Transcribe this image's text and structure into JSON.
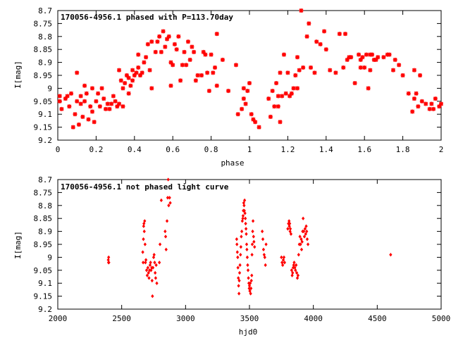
{
  "chart_data": [
    {
      "type": "scatter",
      "title": "170056-4956.1 phased with P=113.70day",
      "xlabel": "phase",
      "ylabel": "I[mag]",
      "xlim": [
        0,
        2
      ],
      "ylim": [
        8.7,
        9.2
      ],
      "y_inverted": true,
      "grid": false,
      "marker_color": "#ff0000",
      "x_ticks": [
        "0",
        "0.2",
        "0.4",
        "0.6",
        "0.8",
        "1",
        "1.2",
        "1.4",
        "1.6",
        "1.8",
        "2"
      ],
      "y_ticks": [
        "8.7",
        "8.75",
        "8.8",
        "8.85",
        "8.9",
        "8.95",
        "9",
        "9.05",
        "9.1",
        "9.15",
        "9.2"
      ],
      "points": [
        [
          0.01,
          9.03
        ],
        [
          0.01,
          9.05
        ],
        [
          0.02,
          9.08
        ],
        [
          0.04,
          9.04
        ],
        [
          0.05,
          9.03
        ],
        [
          0.06,
          9.07
        ],
        [
          0.07,
          9.02
        ],
        [
          0.08,
          9.15
        ],
        [
          0.09,
          9.1
        ],
        [
          0.1,
          9.05
        ],
        [
          0.1,
          8.94
        ],
        [
          0.11,
          9.14
        ],
        [
          0.12,
          9.06
        ],
        [
          0.12,
          9.03
        ],
        [
          0.13,
          9.11
        ],
        [
          0.14,
          8.99
        ],
        [
          0.14,
          9.05
        ],
        [
          0.15,
          9.02
        ],
        [
          0.16,
          9.12
        ],
        [
          0.17,
          9.07
        ],
        [
          0.18,
          9.09
        ],
        [
          0.18,
          9.0
        ],
        [
          0.19,
          9.13
        ],
        [
          0.2,
          9.05
        ],
        [
          0.21,
          9.02
        ],
        [
          0.22,
          9.07
        ],
        [
          0.23,
          9.0
        ],
        [
          0.24,
          9.04
        ],
        [
          0.25,
          9.08
        ],
        [
          0.26,
          9.06
        ],
        [
          0.27,
          9.08
        ],
        [
          0.28,
          9.06
        ],
        [
          0.29,
          9.03
        ],
        [
          0.3,
          9.05
        ],
        [
          0.31,
          9.07
        ],
        [
          0.32,
          9.06
        ],
        [
          0.32,
          8.93
        ],
        [
          0.33,
          8.97
        ],
        [
          0.34,
          9.07
        ],
        [
          0.34,
          9.0
        ],
        [
          0.35,
          8.98
        ],
        [
          0.36,
          8.95
        ],
        [
          0.37,
          9.02
        ],
        [
          0.37,
          8.96
        ],
        [
          0.38,
          8.99
        ],
        [
          0.39,
          8.97
        ],
        [
          0.39,
          8.93
        ],
        [
          0.4,
          8.95
        ],
        [
          0.41,
          8.94
        ],
        [
          0.42,
          8.92
        ],
        [
          0.42,
          8.87
        ],
        [
          0.43,
          8.95
        ],
        [
          0.44,
          8.94
        ],
        [
          0.45,
          8.9
        ],
        [
          0.46,
          8.88
        ],
        [
          0.47,
          8.83
        ],
        [
          0.48,
          8.93
        ],
        [
          0.49,
          8.82
        ],
        [
          0.49,
          9.0
        ],
        [
          0.51,
          8.86
        ],
        [
          0.52,
          8.82
        ],
        [
          0.53,
          8.8
        ],
        [
          0.54,
          8.86
        ],
        [
          0.55,
          8.78
        ],
        [
          0.56,
          8.84
        ],
        [
          0.57,
          8.81
        ],
        [
          0.58,
          8.8
        ],
        [
          0.59,
          8.9
        ],
        [
          0.59,
          8.99
        ],
        [
          0.6,
          8.91
        ],
        [
          0.61,
          8.83
        ],
        [
          0.62,
          8.85
        ],
        [
          0.63,
          8.8
        ],
        [
          0.64,
          8.97
        ],
        [
          0.65,
          8.91
        ],
        [
          0.66,
          8.86
        ],
        [
          0.67,
          8.91
        ],
        [
          0.68,
          8.82
        ],
        [
          0.69,
          8.89
        ],
        [
          0.7,
          8.84
        ],
        [
          0.71,
          8.86
        ],
        [
          0.72,
          8.97
        ],
        [
          0.73,
          8.95
        ],
        [
          0.75,
          8.95
        ],
        [
          0.76,
          8.86
        ],
        [
          0.77,
          8.87
        ],
        [
          0.78,
          8.94
        ],
        [
          0.79,
          9.01
        ],
        [
          0.8,
          8.87
        ],
        [
          0.81,
          8.94
        ],
        [
          0.82,
          8.92
        ],
        [
          0.83,
          8.79
        ],
        [
          0.83,
          8.99
        ],
        [
          0.86,
          8.89
        ],
        [
          0.89,
          9.01
        ],
        [
          0.93,
          8.91
        ],
        [
          0.94,
          9.1
        ],
        [
          0.96,
          9.08
        ],
        [
          0.97,
          9.0
        ],
        [
          0.97,
          9.04
        ],
        [
          0.98,
          9.06
        ],
        [
          0.99,
          9.01
        ],
        [
          1.0,
          8.98
        ],
        [
          1.01,
          9.1
        ],
        [
          1.02,
          9.12
        ],
        [
          1.03,
          9.13
        ],
        [
          1.05,
          9.15
        ],
        [
          1.1,
          9.04
        ],
        [
          1.11,
          9.11
        ],
        [
          1.12,
          9.01
        ],
        [
          1.13,
          9.07
        ],
        [
          1.14,
          8.98
        ],
        [
          1.15,
          9.03
        ],
        [
          1.15,
          9.07
        ],
        [
          1.16,
          8.94
        ],
        [
          1.16,
          9.13
        ],
        [
          1.17,
          9.03
        ],
        [
          1.18,
          8.87
        ],
        [
          1.19,
          9.02
        ],
        [
          1.2,
          8.94
        ],
        [
          1.21,
          9.03
        ],
        [
          1.22,
          9.02
        ],
        [
          1.23,
          9.0
        ],
        [
          1.24,
          8.95
        ],
        [
          1.25,
          9.0
        ],
        [
          1.25,
          8.88
        ],
        [
          1.26,
          8.93
        ],
        [
          1.27,
          8.7
        ],
        [
          1.28,
          8.92
        ],
        [
          1.3,
          8.8
        ],
        [
          1.31,
          8.75
        ],
        [
          1.32,
          8.92
        ],
        [
          1.34,
          8.94
        ],
        [
          1.35,
          8.82
        ],
        [
          1.37,
          8.83
        ],
        [
          1.39,
          8.78
        ],
        [
          1.4,
          8.85
        ],
        [
          1.42,
          8.93
        ],
        [
          1.45,
          8.94
        ],
        [
          1.47,
          8.79
        ],
        [
          1.49,
          8.92
        ],
        [
          1.5,
          8.79
        ],
        [
          1.51,
          8.89
        ],
        [
          1.52,
          8.88
        ],
        [
          1.53,
          8.88
        ],
        [
          1.55,
          8.98
        ],
        [
          1.57,
          8.87
        ],
        [
          1.58,
          8.89
        ],
        [
          1.58,
          8.92
        ],
        [
          1.59,
          8.88
        ],
        [
          1.6,
          8.92
        ],
        [
          1.61,
          8.87
        ],
        [
          1.62,
          9.0
        ],
        [
          1.63,
          8.87
        ],
        [
          1.63,
          8.93
        ],
        [
          1.64,
          8.87
        ],
        [
          1.65,
          8.89
        ],
        [
          1.66,
          8.89
        ],
        [
          1.67,
          8.88
        ],
        [
          1.7,
          8.88
        ],
        [
          1.72,
          8.87
        ],
        [
          1.73,
          8.87
        ],
        [
          1.75,
          8.93
        ],
        [
          1.76,
          8.89
        ],
        [
          1.78,
          8.91
        ],
        [
          1.8,
          8.95
        ],
        [
          1.83,
          9.02
        ],
        [
          1.85,
          9.09
        ],
        [
          1.86,
          9.04
        ],
        [
          1.86,
          8.93
        ],
        [
          1.87,
          9.02
        ],
        [
          1.88,
          9.07
        ],
        [
          1.89,
          8.95
        ],
        [
          1.9,
          9.05
        ],
        [
          1.92,
          9.06
        ],
        [
          1.94,
          9.08
        ],
        [
          1.95,
          9.06
        ],
        [
          1.96,
          9.08
        ],
        [
          1.97,
          9.04
        ],
        [
          1.99,
          9.07
        ],
        [
          2.0,
          9.06
        ]
      ]
    },
    {
      "type": "scatter",
      "title": "170056-4956.1 not phased light curve",
      "xlabel": "hjd0",
      "ylabel": "I[mag]",
      "xlim": [
        2000,
        5000
      ],
      "ylim": [
        8.7,
        9.2
      ],
      "y_inverted": true,
      "grid": false,
      "marker_color": "#ff0000",
      "x_ticks": [
        "2000",
        "2500",
        "3000",
        "3500",
        "4000",
        "4500",
        "5000"
      ],
      "y_ticks": [
        "8.7",
        "8.75",
        "8.8",
        "8.85",
        "8.9",
        "8.95",
        "9",
        "9.05",
        "9.1",
        "9.15",
        "9.2"
      ],
      "points": [
        [
          2395,
          9.01
        ],
        [
          2397,
          9.02
        ],
        [
          2398,
          9.0
        ],
        [
          2400,
          9.02
        ],
        [
          2665,
          8.98
        ],
        [
          2668,
          9.02
        ],
        [
          2670,
          8.93
        ],
        [
          2672,
          8.88
        ],
        [
          2674,
          8.87
        ],
        [
          2677,
          8.9
        ],
        [
          2680,
          8.86
        ],
        [
          2683,
          8.95
        ],
        [
          2686,
          9.02
        ],
        [
          2690,
          9.01
        ],
        [
          2695,
          9.05
        ],
        [
          2700,
          9.07
        ],
        [
          2705,
          9.04
        ],
        [
          2710,
          9.06
        ],
        [
          2714,
          9.08
        ],
        [
          2718,
          9.05
        ],
        [
          2722,
          9.03
        ],
        [
          2726,
          9.02
        ],
        [
          2730,
          9.05
        ],
        [
          2735,
          9.04
        ],
        [
          2738,
          9.09
        ],
        [
          2741,
          9.15
        ],
        [
          2745,
          9.04
        ],
        [
          2750,
          9.0
        ],
        [
          2754,
          8.99
        ],
        [
          2758,
          9.02
        ],
        [
          2762,
          9.06
        ],
        [
          2766,
          9.08
        ],
        [
          2770,
          9.03
        ],
        [
          2775,
          9.1
        ],
        [
          2795,
          9.02
        ],
        [
          2800,
          8.95
        ],
        [
          2810,
          8.78
        ],
        [
          2840,
          8.9
        ],
        [
          2844,
          8.92
        ],
        [
          2848,
          8.97
        ],
        [
          2855,
          8.86
        ],
        [
          2860,
          8.77
        ],
        [
          2864,
          8.7
        ],
        [
          2868,
          8.8
        ],
        [
          2875,
          8.77
        ],
        [
          2880,
          8.79
        ],
        [
          3400,
          8.93
        ],
        [
          3402,
          8.95
        ],
        [
          3405,
          8.98
        ],
        [
          3408,
          9.0
        ],
        [
          3410,
          9.04
        ],
        [
          3413,
          9.08
        ],
        [
          3415,
          9.11
        ],
        [
          3418,
          9.14
        ],
        [
          3420,
          9.09
        ],
        [
          3423,
          9.06
        ],
        [
          3426,
          9.03
        ],
        [
          3430,
          8.99
        ],
        [
          3433,
          8.96
        ],
        [
          3436,
          8.92
        ],
        [
          3440,
          8.9
        ],
        [
          3444,
          8.86
        ],
        [
          3448,
          8.85
        ],
        [
          3450,
          8.84
        ],
        [
          3452,
          8.82
        ],
        [
          3455,
          8.79
        ],
        [
          3458,
          8.8
        ],
        [
          3460,
          8.82
        ],
        [
          3462,
          8.78
        ],
        [
          3465,
          8.83
        ],
        [
          3468,
          8.85
        ],
        [
          3470,
          8.87
        ],
        [
          3473,
          8.89
        ],
        [
          3475,
          8.91
        ],
        [
          3478,
          8.95
        ],
        [
          3480,
          8.97
        ],
        [
          3483,
          9.0
        ],
        [
          3486,
          9.03
        ],
        [
          3489,
          9.05
        ],
        [
          3492,
          9.08
        ],
        [
          3495,
          9.1
        ],
        [
          3498,
          9.12
        ],
        [
          3500,
          9.11
        ],
        [
          3503,
          9.13
        ],
        [
          3506,
          9.1
        ],
        [
          3509,
          9.14
        ],
        [
          3512,
          9.12
        ],
        [
          3515,
          9.09
        ],
        [
          3518,
          9.07
        ],
        [
          3520,
          8.99
        ],
        [
          3522,
          8.95
        ],
        [
          3525,
          8.9
        ],
        [
          3528,
          8.86
        ],
        [
          3532,
          8.92
        ],
        [
          3535,
          8.94
        ],
        [
          3540,
          8.96
        ],
        [
          3600,
          8.9
        ],
        [
          3605,
          8.93
        ],
        [
          3610,
          8.97
        ],
        [
          3615,
          8.99
        ],
        [
          3620,
          9.0
        ],
        [
          3625,
          9.03
        ],
        [
          3630,
          8.95
        ],
        [
          3750,
          9.0
        ],
        [
          3755,
          9.02
        ],
        [
          3760,
          9.03
        ],
        [
          3765,
          9.01
        ],
        [
          3770,
          9.0
        ],
        [
          3775,
          9.02
        ],
        [
          3800,
          8.89
        ],
        [
          3805,
          8.87
        ],
        [
          3810,
          8.86
        ],
        [
          3812,
          8.88
        ],
        [
          3815,
          8.87
        ],
        [
          3818,
          8.9
        ],
        [
          3820,
          8.89
        ],
        [
          3825,
          8.91
        ],
        [
          3830,
          9.05
        ],
        [
          3834,
          9.07
        ],
        [
          3838,
          9.06
        ],
        [
          3842,
          9.04
        ],
        [
          3846,
          9.03
        ],
        [
          3850,
          9.02
        ],
        [
          3855,
          9.04
        ],
        [
          3860,
          9.05
        ],
        [
          3865,
          9.03
        ],
        [
          3870,
          9.06
        ],
        [
          3875,
          9.08
        ],
        [
          3880,
          9.07
        ],
        [
          3885,
          8.99
        ],
        [
          3890,
          8.95
        ],
        [
          3895,
          8.92
        ],
        [
          3900,
          8.95
        ],
        [
          3905,
          8.93
        ],
        [
          3908,
          8.97
        ],
        [
          3912,
          8.94
        ],
        [
          3916,
          8.9
        ],
        [
          3920,
          8.85
        ],
        [
          3925,
          8.9
        ],
        [
          3930,
          8.92
        ],
        [
          3935,
          8.89
        ],
        [
          3940,
          8.91
        ],
        [
          3944,
          8.88
        ],
        [
          3948,
          8.9
        ],
        [
          3952,
          8.93
        ],
        [
          3958,
          8.95
        ],
        [
          4605,
          8.99
        ]
      ]
    }
  ]
}
